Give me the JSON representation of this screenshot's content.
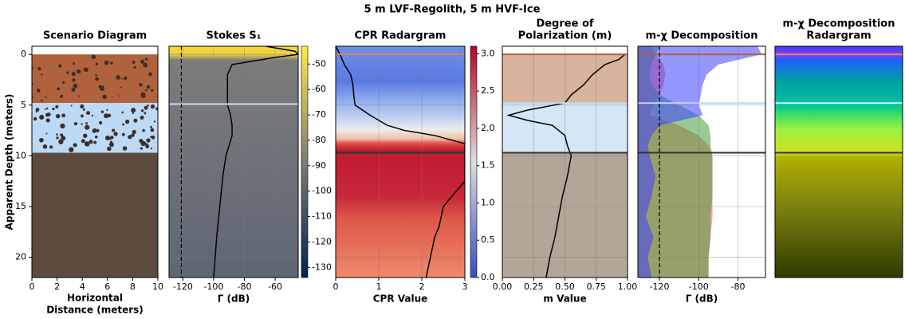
{
  "title": "5 m LVF-Regolith, 5 m HVF-Ice",
  "chart_data": [
    {
      "type": "diagram",
      "title": [
        "Scenario Diagram"
      ],
      "xlabel": [
        "Horizontal",
        "Distance (meters)"
      ],
      "ylabel": "Apparent Depth (meters)",
      "xlim": [
        0,
        10
      ],
      "xticks": [
        0,
        2,
        4,
        6,
        8,
        10
      ],
      "ylim": [
        -0.8,
        22
      ],
      "yticks": [
        0,
        5,
        10,
        15,
        20
      ],
      "grid": false,
      "bands": [
        {
          "from": 0,
          "to": 4.8,
          "color": "#b0623c"
        },
        {
          "from": 4.8,
          "to": 9.7,
          "color": "#bcd9f5"
        },
        {
          "from": 9.7,
          "to": 22,
          "color": "#5c4b3e"
        }
      ]
    },
    {
      "type": "line",
      "title": [
        "Stokes S₁"
      ],
      "xlabel": [
        "Γ (dB)"
      ],
      "xlim": [
        -129,
        -45
      ],
      "xticks": [
        -120,
        -100,
        -80,
        -60
      ],
      "ylim": [
        -0.8,
        22
      ],
      "yticks": [
        0,
        5,
        10,
        15,
        20
      ],
      "grid": true,
      "vline": -121,
      "boundaries": [
        {
          "depth": 4.9,
          "color": "#c6e0f8"
        }
      ],
      "depth": [
        -0.8,
        -0.3,
        0,
        0.3,
        1,
        2,
        3,
        5,
        6,
        7,
        8,
        10,
        12,
        15,
        18,
        22
      ],
      "series": [
        {
          "color": "#000000",
          "values": [
            -66,
            -47,
            -45,
            -60,
            -88,
            -91,
            -91,
            -91,
            -89,
            -88,
            -88,
            -92,
            -94,
            -96,
            -98,
            -100
          ]
        }
      ],
      "colorbar": {
        "lim": [
          -134,
          -43
        ],
        "ticks": [
          -50,
          -60,
          -70,
          -80,
          -90,
          -100,
          -110,
          -120,
          -130
        ]
      }
    },
    {
      "type": "line",
      "title": [
        "CPR Radargram"
      ],
      "xlabel": [
        "CPR Value"
      ],
      "xlim": [
        0,
        3
      ],
      "xticks": [
        0,
        1,
        2,
        3
      ],
      "ylim": [
        -0.8,
        22
      ],
      "yticks": [
        0,
        5,
        10,
        15,
        20
      ],
      "grid": true,
      "boundaries": [
        {
          "depth": 0,
          "color": "#e08050"
        },
        {
          "depth": 9.7,
          "color": "#333333"
        }
      ],
      "depth": [
        -0.8,
        0,
        1,
        2,
        3,
        4,
        5,
        6,
        7,
        7.5,
        8,
        8.8,
        12.5,
        13,
        14,
        15,
        16,
        17,
        18,
        19,
        20,
        21,
        22
      ],
      "series": [
        {
          "color": "#000000",
          "values": [
            0,
            0.1,
            0.2,
            0.35,
            0.4,
            0.42,
            0.45,
            0.8,
            1.2,
            1.6,
            2.3,
            3.0,
            3.0,
            2.9,
            2.7,
            2.5,
            2.45,
            2.4,
            2.3,
            2.25,
            2.2,
            2.15,
            2.1
          ]
        }
      ],
      "colorbar": {
        "lim": [
          0,
          3.1
        ],
        "ticks": [
          {
            "value": 0,
            "label": "0.0"
          },
          {
            "value": 0.5,
            "label": "0.5"
          },
          {
            "value": 1,
            "label": "1.0"
          },
          {
            "value": 1.5,
            "label": "1.5"
          },
          {
            "value": 2,
            "label": "2.0"
          },
          {
            "value": 2.5,
            "label": "2.5"
          },
          {
            "value": 3,
            "label": "3.0"
          }
        ]
      }
    },
    {
      "type": "line",
      "title": [
        "Degree of",
        "Polarization (m)"
      ],
      "xlabel": [
        "m Value"
      ],
      "xlim": [
        0,
        1
      ],
      "xticks": [
        {
          "value": 0,
          "label": "0.00"
        },
        {
          "value": 0.25,
          "label": "0.25"
        },
        {
          "value": 0.5,
          "label": "0.50"
        },
        {
          "value": 0.75,
          "label": "0.75"
        },
        {
          "value": 1,
          "label": "1.00"
        }
      ],
      "ylim": [
        -0.8,
        22
      ],
      "yticks": [
        0,
        5,
        10,
        15,
        20
      ],
      "grid": true,
      "bands": [
        {
          "from": 0,
          "to": 4.8,
          "color": "#d9b49c"
        },
        {
          "from": 4.8,
          "to": 9.7,
          "color": "#d5e6f7"
        },
        {
          "from": 9.7,
          "to": 22,
          "color": "#b3a698"
        }
      ],
      "boundaries": [
        {
          "depth": 0,
          "color": "#b0623c"
        },
        {
          "depth": 4.8,
          "color": "#bcd9f5"
        },
        {
          "depth": 9.7,
          "color": "#333333"
        }
      ],
      "depth": [
        0,
        0.5,
        1,
        2,
        3,
        4,
        4.8,
        5.5,
        6,
        6.5,
        7,
        8,
        9,
        10,
        12,
        14,
        16,
        18,
        20,
        22
      ],
      "series": [
        {
          "color": "#000000",
          "values": [
            0.98,
            0.93,
            0.82,
            0.72,
            0.65,
            0.55,
            0.5,
            0.2,
            0.05,
            0.2,
            0.4,
            0.5,
            0.52,
            0.55,
            0.52,
            0.48,
            0.45,
            0.42,
            0.38,
            0.35
          ]
        }
      ]
    },
    {
      "type": "area",
      "title": [
        "m-χ Decomposition"
      ],
      "xlabel": [
        "Γ (dB)"
      ],
      "xlim": [
        -131,
        -66
      ],
      "xticks": [
        -120,
        -100,
        -80
      ],
      "ylim": [
        -0.8,
        22
      ],
      "yticks": [
        0,
        5,
        10,
        15,
        20
      ],
      "grid": true,
      "vline": -120,
      "boundaries": [
        {
          "depth": 0,
          "color": "#b0623c"
        },
        {
          "depth": 4.8,
          "color": "#bcd9f5"
        },
        {
          "depth": 9.7,
          "color": "#333333"
        }
      ],
      "depth": [
        -0.8,
        0,
        1,
        2,
        3,
        4,
        5,
        6,
        7,
        8,
        9,
        10,
        12,
        14,
        16,
        18,
        20,
        22
      ],
      "series": [
        {
          "color": "#ff5050",
          "values": [
            -125,
            -122,
            -118,
            -117,
            -118,
            -120,
            -123,
            -125,
            -110,
            -100,
            -95,
            -93,
            -93,
            -93,
            -93,
            -94,
            -95,
            -95
          ]
        },
        {
          "color": "#40a040",
          "values": [
            -120,
            -122,
            -124,
            -125,
            -124,
            -120,
            -110,
            -100,
            -95,
            -94,
            -94,
            -93,
            -93,
            -93,
            -94,
            -94,
            -95,
            -95
          ]
        },
        {
          "color": "#4040ff",
          "values": [
            -70,
            -68,
            -90,
            -96,
            -98,
            -99,
            -100,
            -98,
            -120,
            -124,
            -126,
            -125,
            -122,
            -124,
            -127,
            -123,
            -126,
            -124
          ]
        }
      ]
    },
    {
      "type": "image",
      "title": [
        "m-χ Decomposition",
        "Radargram"
      ],
      "ylim": [
        -0.8,
        22
      ],
      "boundaries": [
        {
          "depth": 0,
          "color": "#ff8040"
        },
        {
          "depth": 4.8,
          "color": "#d8f0ff"
        },
        {
          "depth": 9.7,
          "color": "#333333"
        }
      ]
    }
  ]
}
